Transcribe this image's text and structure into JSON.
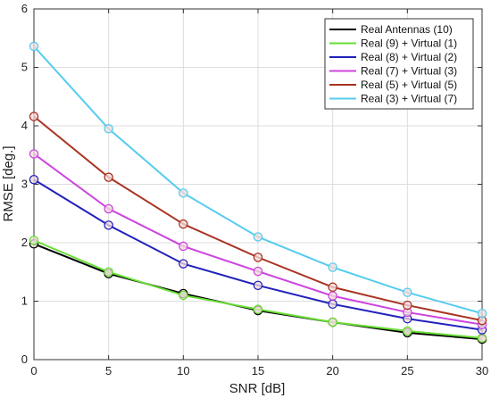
{
  "chart_data": {
    "type": "line",
    "xlabel": "SNR [dB]",
    "ylabel": "RMSE [deg.]",
    "x": [
      0,
      5,
      10,
      15,
      20,
      25,
      30
    ],
    "xlim": [
      0,
      30
    ],
    "ylim": [
      0,
      6
    ],
    "xticks": [
      "0",
      "5",
      "10",
      "15",
      "20",
      "25",
      "30"
    ],
    "yticks": [
      "0",
      "1",
      "2",
      "3",
      "4",
      "5",
      "6"
    ],
    "grid": true,
    "legend_position": "top-right",
    "series": [
      {
        "name": "Real Antennas (10)",
        "color": "#000000",
        "values": [
          1.98,
          1.47,
          1.13,
          0.84,
          0.64,
          0.46,
          0.35
        ]
      },
      {
        "name": "Real (9) + Virtual (1)",
        "color": "#66dd33",
        "values": [
          2.04,
          1.5,
          1.1,
          0.86,
          0.64,
          0.49,
          0.37
        ]
      },
      {
        "name": "Real (8) + Virtual (2)",
        "color": "#2222bb",
        "values": [
          3.08,
          2.3,
          1.64,
          1.27,
          0.95,
          0.7,
          0.51
        ]
      },
      {
        "name": "Real (7) + Virtual (3)",
        "color": "#cc44dd",
        "values": [
          3.52,
          2.58,
          1.94,
          1.51,
          1.09,
          0.81,
          0.6
        ]
      },
      {
        "name": "Real (5) + Virtual (5)",
        "color": "#aa3322",
        "values": [
          4.16,
          3.12,
          2.32,
          1.75,
          1.24,
          0.93,
          0.67
        ]
      },
      {
        "name": "Real (3) + Virtual (7)",
        "color": "#55ccee",
        "values": [
          5.36,
          3.95,
          2.85,
          2.1,
          1.58,
          1.15,
          0.79
        ]
      }
    ]
  }
}
